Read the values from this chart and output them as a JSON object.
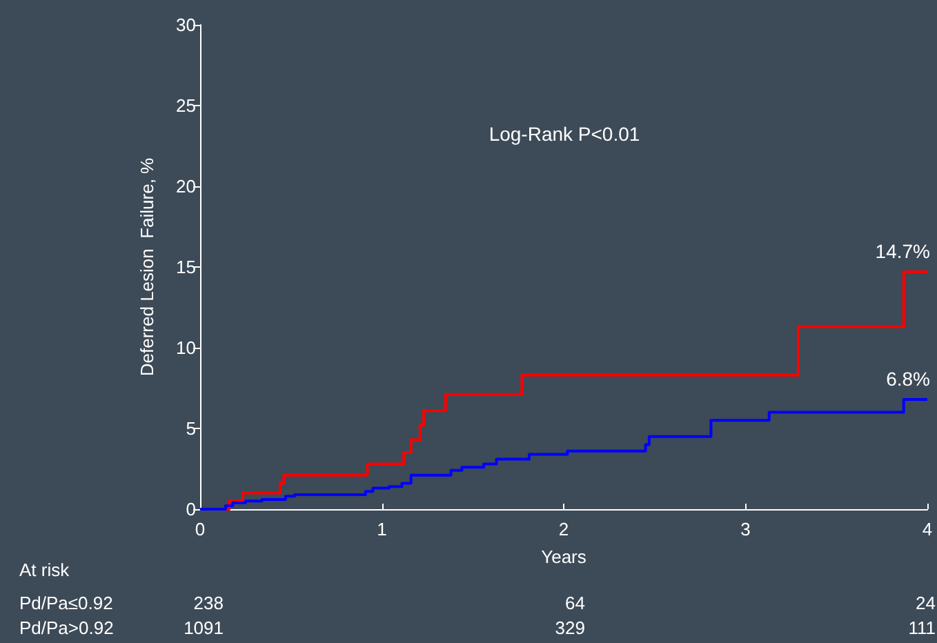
{
  "chart_data": {
    "type": "step",
    "xlabel": "Years",
    "ylabel": "Deferred Lesion  Failure, %",
    "xlim": [
      0,
      4
    ],
    "xticks": [
      0,
      1,
      2,
      3,
      4
    ],
    "ylim": [
      0,
      30
    ],
    "yticks": [
      0,
      5,
      10,
      15,
      20,
      25,
      30
    ],
    "grid": false,
    "marker": "none",
    "line_style": "solid",
    "series": [
      {
        "color": "#ff0000",
        "x": [
          0,
          0.16,
          0.235,
          0.44,
          0.46,
          0.92,
          1.12,
          1.16,
          1.21,
          1.23,
          1.35,
          1.77,
          3.29,
          3.87,
          4
        ],
        "values": [
          0,
          0.5,
          1,
          1.6,
          2.1,
          2.8,
          3.5,
          4.3,
          5.2,
          6.1,
          7.1,
          8.3,
          11.3,
          14.7,
          14.7
        ]
      },
      {
        "color": "#0000ff",
        "x": [
          0,
          0.14,
          0.18,
          0.25,
          0.34,
          0.47,
          0.52,
          0.91,
          0.95,
          1.04,
          1.11,
          1.16,
          1.38,
          1.44,
          1.56,
          1.63,
          1.81,
          2.02,
          2.45,
          2.47,
          2.81,
          3.13,
          3.87,
          4
        ],
        "values": [
          0,
          0.2,
          0.4,
          0.5,
          0.6,
          0.8,
          0.9,
          1.1,
          1.3,
          1.4,
          1.6,
          2.1,
          2.4,
          2.6,
          2.8,
          3.1,
          3.4,
          3.6,
          4,
          4.5,
          5.5,
          6,
          6.8,
          6.8
        ]
      }
    ],
    "annotations": [
      {
        "text": "14.7%",
        "x": 4,
        "y": 14.7
      },
      {
        "text": "6.8%",
        "x": 4,
        "y": 6.8
      },
      "Log-Rank P<0.01",
      "At risk",
      "Pd/Pa≤0.92",
      "238",
      "64",
      "24",
      "Pd/Pa>0.92",
      "1091",
      "329",
      "111"
    ]
  }
}
